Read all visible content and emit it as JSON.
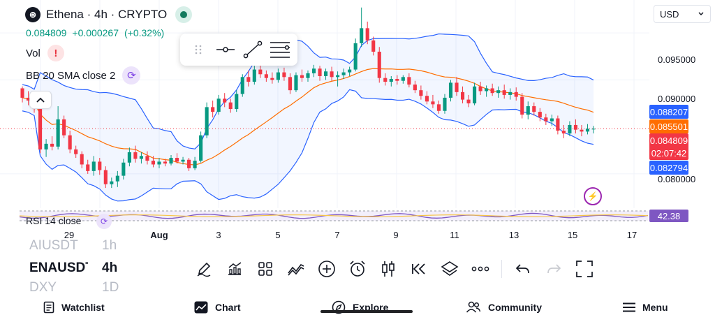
{
  "header": {
    "symbol_title": "Ethena · 4h · CRYPTO",
    "logo_glyph": "⊛",
    "last_price": "0.084809",
    "change": "+0.000267",
    "change_pct": "(+0.32%)",
    "currency": "USD"
  },
  "indicators": {
    "vol_label": "Vol",
    "bb_label": "BB 20 SMA close 2",
    "rsi_label": "RSI 14 close"
  },
  "price_axis": {
    "ticks": [
      "0.095000",
      "0.090000",
      "0.080000"
    ],
    "labels": {
      "bb_upper": "0.088207",
      "bb_basis": "0.085501",
      "last": "0.084809",
      "countdown": "02:07:42",
      "bb_lower": "0.082794",
      "rsi": "42.38"
    }
  },
  "time_axis": {
    "labels": [
      "29",
      "Aug",
      "3",
      "5",
      "7",
      "9",
      "11",
      "13",
      "15",
      "17"
    ]
  },
  "symbols": {
    "prev": "AIUSDT",
    "prev_tf": "1h",
    "current": "ENAUSDT",
    "current_tf": "4h",
    "next": "DXY",
    "next_tf": "1D"
  },
  "bottom_nav": {
    "watchlist": "Watchlist",
    "chart": "Chart",
    "explore": "Explore",
    "community": "Community",
    "menu": "Menu"
  },
  "colors": {
    "up": "#089981",
    "down": "#f23645",
    "bb_band": "#2962ff",
    "bb_basis": "#ff6d00",
    "rsi": "#7e57c2"
  },
  "chart_data": {
    "type": "candlestick",
    "symbol": "Ethena",
    "timeframe": "4h",
    "ylim": [
      0.0765,
      0.0985
    ],
    "y_ticks": [
      0.095,
      0.09,
      0.08
    ],
    "last_price": 0.084809,
    "candles": [
      [
        0.0891,
        0.0893,
        0.0876,
        0.0881
      ],
      [
        0.0881,
        0.0888,
        0.0873,
        0.0878
      ],
      [
        0.0878,
        0.0885,
        0.0865,
        0.0869
      ],
      [
        0.0869,
        0.0873,
        0.0822,
        0.0826
      ],
      [
        0.0826,
        0.0837,
        0.0818,
        0.0832
      ],
      [
        0.0832,
        0.084,
        0.0825,
        0.0829
      ],
      [
        0.0829,
        0.0872,
        0.0826,
        0.0858
      ],
      [
        0.0858,
        0.0862,
        0.0838,
        0.0841
      ],
      [
        0.0841,
        0.0846,
        0.0822,
        0.0826
      ],
      [
        0.0826,
        0.083,
        0.0817,
        0.0821
      ],
      [
        0.0821,
        0.0824,
        0.0806,
        0.081
      ],
      [
        0.081,
        0.0815,
        0.08,
        0.0803
      ],
      [
        0.0803,
        0.0819,
        0.0798,
        0.0813
      ],
      [
        0.0813,
        0.0817,
        0.0799,
        0.0804
      ],
      [
        0.0804,
        0.0808,
        0.0785,
        0.0789
      ],
      [
        0.0789,
        0.0796,
        0.0785,
        0.0792
      ],
      [
        0.0792,
        0.0803,
        0.0786,
        0.0798
      ],
      [
        0.0798,
        0.0816,
        0.0794,
        0.0812
      ],
      [
        0.0812,
        0.0828,
        0.0808,
        0.0823
      ],
      [
        0.0823,
        0.083,
        0.0812,
        0.0816
      ],
      [
        0.0816,
        0.0823,
        0.0811,
        0.0819
      ],
      [
        0.0819,
        0.0824,
        0.081,
        0.0814
      ],
      [
        0.0814,
        0.0819,
        0.0807,
        0.081
      ],
      [
        0.081,
        0.0817,
        0.0806,
        0.0813
      ],
      [
        0.0813,
        0.0816,
        0.0808,
        0.0811
      ],
      [
        0.0811,
        0.082,
        0.0809,
        0.0817
      ],
      [
        0.0817,
        0.0822,
        0.0811,
        0.0813
      ],
      [
        0.0813,
        0.0818,
        0.081,
        0.0815
      ],
      [
        0.0815,
        0.0817,
        0.0803,
        0.0806
      ],
      [
        0.0806,
        0.0818,
        0.0804,
        0.0814
      ],
      [
        0.0814,
        0.0845,
        0.0812,
        0.0841
      ],
      [
        0.0841,
        0.0876,
        0.0838,
        0.0871
      ],
      [
        0.0871,
        0.0878,
        0.086,
        0.0866
      ],
      [
        0.0866,
        0.0884,
        0.0863,
        0.088
      ],
      [
        0.088,
        0.0886,
        0.0871,
        0.0876
      ],
      [
        0.0876,
        0.088,
        0.0865,
        0.0869
      ],
      [
        0.0869,
        0.0889,
        0.0866,
        0.0885
      ],
      [
        0.0885,
        0.0906,
        0.0882,
        0.0903
      ],
      [
        0.0903,
        0.091,
        0.0893,
        0.0898
      ],
      [
        0.0898,
        0.0915,
        0.0895,
        0.0911
      ],
      [
        0.0911,
        0.0918,
        0.0902,
        0.0906
      ],
      [
        0.0906,
        0.091,
        0.0898,
        0.0902
      ],
      [
        0.0902,
        0.0908,
        0.0896,
        0.09
      ],
      [
        0.09,
        0.0912,
        0.0897,
        0.0908
      ],
      [
        0.0908,
        0.0913,
        0.0899,
        0.0903
      ],
      [
        0.0903,
        0.0907,
        0.0885,
        0.0889
      ],
      [
        0.0889,
        0.0908,
        0.0887,
        0.0905
      ],
      [
        0.0905,
        0.0911,
        0.0898,
        0.0902
      ],
      [
        0.0902,
        0.091,
        0.0898,
        0.0907
      ],
      [
        0.0907,
        0.0916,
        0.0903,
        0.0912
      ],
      [
        0.0912,
        0.0915,
        0.0899,
        0.0904
      ],
      [
        0.0904,
        0.0912,
        0.09,
        0.0909
      ],
      [
        0.0909,
        0.0914,
        0.0899,
        0.0903
      ],
      [
        0.0903,
        0.0909,
        0.0893,
        0.0905
      ],
      [
        0.0905,
        0.0912,
        0.0901,
        0.0908
      ],
      [
        0.0908,
        0.0914,
        0.0904,
        0.0911
      ],
      [
        0.0911,
        0.0944,
        0.0909,
        0.0939
      ],
      [
        0.0939,
        0.0977,
        0.0935,
        0.0955
      ],
      [
        0.0955,
        0.0962,
        0.0938,
        0.0942
      ],
      [
        0.0942,
        0.0946,
        0.0926,
        0.093
      ],
      [
        0.093,
        0.0935,
        0.0897,
        0.0902
      ],
      [
        0.0902,
        0.0907,
        0.0894,
        0.0898
      ],
      [
        0.0898,
        0.0904,
        0.0893,
        0.0901
      ],
      [
        0.0901,
        0.0905,
        0.0895,
        0.0899
      ],
      [
        0.0899,
        0.0905,
        0.0896,
        0.0903
      ],
      [
        0.0903,
        0.0907,
        0.0892,
        0.0895
      ],
      [
        0.0895,
        0.0899,
        0.0886,
        0.0889
      ],
      [
        0.0889,
        0.0894,
        0.0879,
        0.0883
      ],
      [
        0.0883,
        0.0888,
        0.0874,
        0.0877
      ],
      [
        0.0877,
        0.0884,
        0.087,
        0.0874
      ],
      [
        0.0874,
        0.0878,
        0.0864,
        0.0867
      ],
      [
        0.0867,
        0.0885,
        0.0864,
        0.0881
      ],
      [
        0.0881,
        0.09,
        0.0877,
        0.0897
      ],
      [
        0.0897,
        0.0903,
        0.0883,
        0.0887
      ],
      [
        0.0887,
        0.0893,
        0.0875,
        0.0879
      ],
      [
        0.0879,
        0.0884,
        0.0871,
        0.0875
      ],
      [
        0.0875,
        0.0897,
        0.0873,
        0.0893
      ],
      [
        0.0893,
        0.0898,
        0.0884,
        0.0888
      ],
      [
        0.0888,
        0.0894,
        0.0882,
        0.0891
      ],
      [
        0.0891,
        0.0896,
        0.0883,
        0.0886
      ],
      [
        0.0886,
        0.0893,
        0.0881,
        0.0889
      ],
      [
        0.0889,
        0.0895,
        0.088,
        0.0884
      ],
      [
        0.0884,
        0.0891,
        0.0879,
        0.0887
      ],
      [
        0.0887,
        0.0892,
        0.0878,
        0.0882
      ],
      [
        0.0882,
        0.0886,
        0.0859,
        0.0863
      ],
      [
        0.0863,
        0.0877,
        0.0858,
        0.0872
      ],
      [
        0.0872,
        0.0876,
        0.0862,
        0.0866
      ],
      [
        0.0866,
        0.087,
        0.0856,
        0.086
      ],
      [
        0.086,
        0.0864,
        0.0852,
        0.0856
      ],
      [
        0.0856,
        0.0863,
        0.0851,
        0.0859
      ],
      [
        0.0859,
        0.0862,
        0.0842,
        0.0846
      ],
      [
        0.0846,
        0.0852,
        0.0838,
        0.0843
      ],
      [
        0.0843,
        0.0856,
        0.084,
        0.0852
      ],
      [
        0.0852,
        0.0858,
        0.0843,
        0.0847
      ],
      [
        0.0847,
        0.0852,
        0.084,
        0.0845
      ],
      [
        0.0845,
        0.0853,
        0.0842,
        0.0848
      ],
      [
        0.0848,
        0.0851,
        0.0843,
        0.0848
      ]
    ]
  }
}
